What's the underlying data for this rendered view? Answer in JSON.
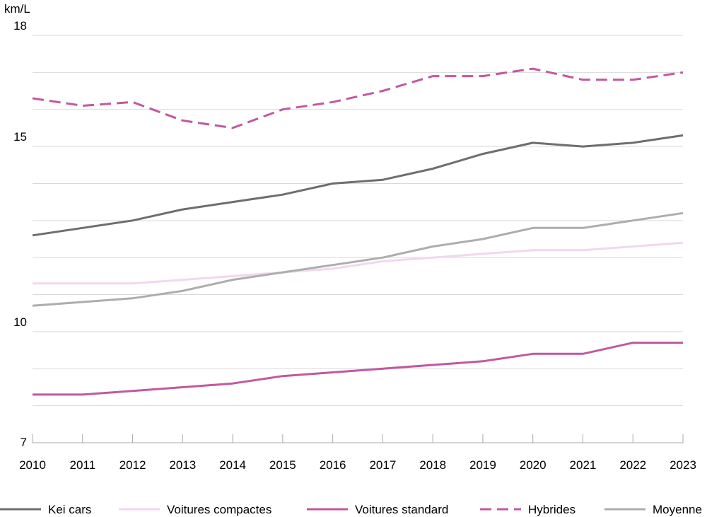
{
  "chart_data": {
    "type": "line",
    "ylabel": "km/L",
    "ylim": [
      7,
      18
    ],
    "yticks": [
      7,
      10,
      15,
      18
    ],
    "grid_y_step": 1,
    "grid": "horizontal",
    "legend_position": "bottom",
    "x": [
      "2010",
      "2011",
      "2012",
      "2013",
      "2014",
      "2015",
      "2016",
      "2017",
      "2018",
      "2019",
      "2020",
      "2021",
      "2022",
      "2023"
    ],
    "series": [
      {
        "name": "Kei cars",
        "color": "#6e6e6e",
        "dash": "solid",
        "values": [
          12.6,
          12.8,
          13.0,
          13.3,
          13.5,
          13.7,
          14.0,
          14.1,
          14.4,
          14.8,
          15.1,
          15.0,
          15.1,
          15.3
        ]
      },
      {
        "name": "Voitures compactes",
        "color": "#f0d8ef",
        "dash": "solid",
        "values": [
          11.3,
          11.3,
          11.3,
          11.4,
          11.5,
          11.6,
          11.7,
          11.9,
          12.0,
          12.1,
          12.2,
          12.2,
          12.3,
          12.4
        ]
      },
      {
        "name": "Voitures standard",
        "color": "#c2589f",
        "dash": "solid",
        "values": [
          8.3,
          8.3,
          8.4,
          8.5,
          8.6,
          8.8,
          8.9,
          9.0,
          9.1,
          9.2,
          9.4,
          9.4,
          9.7,
          9.7
        ]
      },
      {
        "name": "Hybrides",
        "color": "#c2589f",
        "dash": "dashed",
        "values": [
          16.3,
          16.1,
          16.2,
          15.7,
          15.5,
          16.0,
          16.2,
          16.5,
          16.9,
          16.9,
          17.1,
          16.8,
          16.8,
          17.0
        ]
      },
      {
        "name": "Moyenne",
        "color": "#adadad",
        "dash": "solid",
        "values": [
          10.7,
          10.8,
          10.9,
          11.1,
          11.4,
          11.6,
          11.8,
          12.0,
          12.3,
          12.5,
          12.8,
          12.8,
          13.0,
          13.2
        ]
      }
    ]
  }
}
